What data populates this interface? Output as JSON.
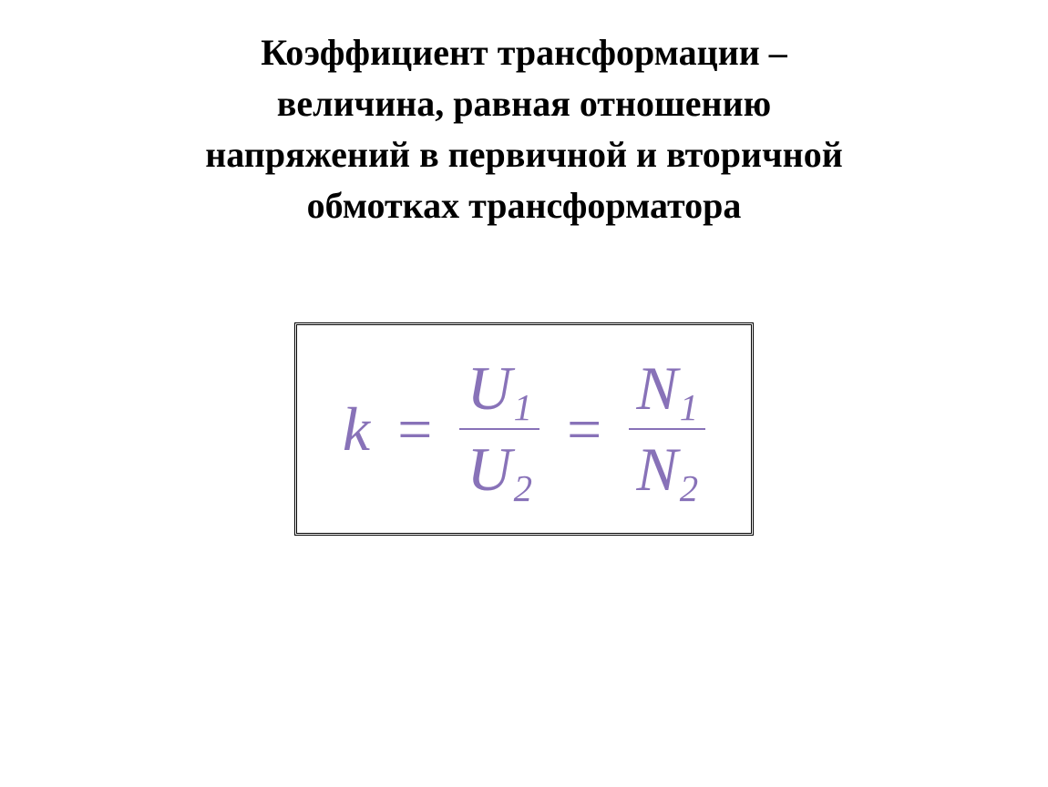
{
  "definition": {
    "line1": "Коэффициент трансформации –",
    "line2": "величина, равная отношению",
    "line3": "напряжений в первичной и вторичной",
    "line4": "обмотках трансформатора",
    "fontsize": 40,
    "color": "#000000"
  },
  "formula": {
    "lhs": "k",
    "eq": "=",
    "frac1_num_base": "U",
    "frac1_num_sub": "1",
    "frac1_den_base": "U",
    "frac1_den_sub": "2",
    "frac2_num_base": "N",
    "frac2_num_sub": "1",
    "frac2_den_base": "N",
    "frac2_den_sub": "2",
    "color": "#8872b8",
    "fontsize": 68,
    "line_color": "#8872b8",
    "line_height": 2
  },
  "layout": {
    "background_color": "#ffffff",
    "box_border_color": "#000000"
  }
}
